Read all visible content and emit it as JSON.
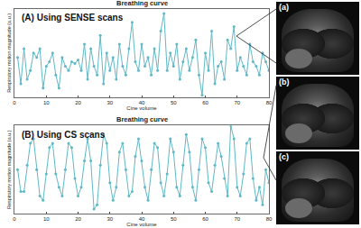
{
  "chart_data": [
    {
      "type": "line",
      "title": "Breathing curve",
      "annotation": "(A) Using SENSE scans",
      "x_label": "Cine volume",
      "y_label": "Respiratory motion magnitude (a.u.)",
      "xlim": [
        0,
        80
      ],
      "xticks": [
        0,
        10,
        20,
        30,
        40,
        50,
        60,
        70,
        80
      ],
      "ylim": [
        0,
        1
      ],
      "tick_labels": "x",
      "grid": false,
      "color": "#5fb8c6",
      "marker": "circle",
      "line_style": "solid",
      "x": [
        1,
        2,
        3,
        4,
        5,
        6,
        7,
        8,
        9,
        10,
        11,
        12,
        13,
        14,
        15,
        16,
        17,
        18,
        19,
        20,
        21,
        22,
        23,
        24,
        25,
        26,
        27,
        28,
        29,
        30,
        31,
        32,
        33,
        34,
        35,
        36,
        37,
        38,
        39,
        40,
        41,
        42,
        43,
        44,
        45,
        46,
        47,
        48,
        49,
        50,
        51,
        52,
        53,
        54,
        55,
        56,
        57,
        58,
        59,
        60,
        61,
        62,
        63,
        64,
        65,
        66,
        67,
        68,
        69,
        70,
        71,
        72,
        73,
        74,
        75,
        76,
        77,
        78,
        79,
        80
      ],
      "values": [
        0.45,
        0.15,
        0.55,
        0.2,
        0.3,
        0.5,
        0.45,
        0.55,
        0.1,
        0.35,
        0.4,
        0.5,
        0.25,
        0.1,
        0.45,
        0.35,
        0.3,
        0.4,
        0.38,
        0.42,
        0.3,
        0.6,
        0.2,
        0.55,
        0.35,
        0.25,
        0.7,
        0.15,
        0.5,
        0.3,
        0.45,
        0.2,
        0.6,
        0.35,
        0.25,
        0.55,
        0.85,
        0.4,
        0.3,
        0.6,
        0.35,
        0.45,
        0.25,
        0.55,
        0.3,
        0.75,
        0.95,
        0.3,
        0.5,
        0.35,
        0.6,
        0.2,
        0.4,
        0.55,
        0.3,
        0.45,
        0.65,
        0.25,
        0.02,
        0.5,
        0.3,
        0.75,
        0.15,
        0.35,
        0.4,
        0.2,
        0.65,
        0.55,
        0.8,
        0.3,
        0.45,
        0.35,
        0.25,
        0.6,
        0.4,
        0.35,
        0.25,
        0.5,
        0.4,
        0.3
      ]
    },
    {
      "type": "line",
      "title": "Breathing curve",
      "annotation": "(B) Using CS scans",
      "x_label": "Cine volume",
      "y_label": "Respiratory motion magnitude (a.u.)",
      "xlim": [
        0,
        80
      ],
      "xticks": [
        0,
        10,
        20,
        30,
        40,
        50,
        60,
        70,
        80
      ],
      "ylim": [
        0,
        1
      ],
      "tick_labels": "x",
      "grid": false,
      "color": "#5fb8c6",
      "marker": "circle",
      "line_style": "solid",
      "x": [
        1,
        2,
        3,
        4,
        5,
        6,
        7,
        8,
        9,
        10,
        11,
        12,
        13,
        14,
        15,
        16,
        17,
        18,
        19,
        20,
        21,
        22,
        23,
        24,
        25,
        26,
        27,
        28,
        29,
        30,
        31,
        32,
        33,
        34,
        35,
        36,
        37,
        38,
        39,
        40,
        41,
        42,
        43,
        44,
        45,
        46,
        47,
        48,
        49,
        50,
        51,
        52,
        53,
        54,
        55,
        56,
        57,
        58,
        59,
        60,
        61,
        62,
        63,
        64,
        65,
        66,
        67,
        68,
        69,
        70,
        71,
        72,
        73,
        74,
        75,
        76,
        77,
        78,
        79,
        80
      ],
      "values": [
        0.5,
        0.25,
        0.25,
        0.55,
        0.8,
        0.85,
        0.5,
        0.2,
        0.15,
        0.45,
        0.75,
        0.8,
        0.45,
        0.3,
        0.2,
        0.5,
        0.8,
        0.75,
        0.4,
        0.2,
        0.3,
        0.6,
        0.85,
        0.6,
        0.05,
        0.1,
        0.55,
        0.9,
        0.8,
        0.35,
        0.15,
        0.3,
        0.7,
        0.8,
        0.5,
        0.2,
        0.25,
        0.65,
        0.85,
        0.6,
        0.3,
        0.15,
        0.5,
        0.8,
        0.75,
        0.35,
        0.2,
        0.45,
        0.85,
        0.7,
        0.3,
        0.2,
        0.55,
        0.9,
        0.7,
        0.3,
        0.15,
        0.5,
        0.85,
        0.75,
        0.35,
        0.25,
        0.55,
        0.8,
        0.65,
        0.4,
        0.2,
        1.0,
        0.85,
        0.3,
        0.2,
        0.45,
        0.8,
        0.85,
        0.4,
        0.15,
        0.3,
        0.1,
        0.5,
        0.35
      ]
    }
  ],
  "images": {
    "labels": [
      "(a)",
      "(b)",
      "(c)"
    ]
  }
}
